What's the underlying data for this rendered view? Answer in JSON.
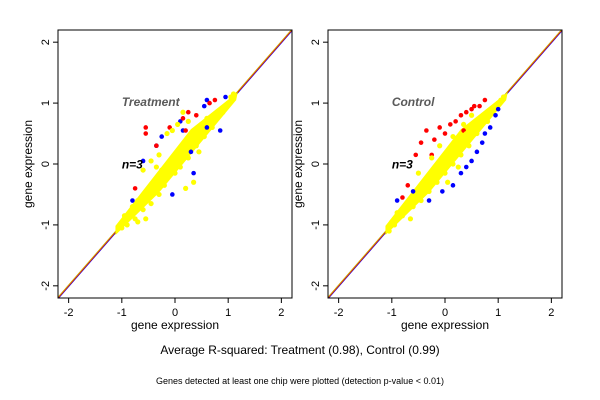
{
  "colors": {
    "background": "#ffffff",
    "frame": "#000000",
    "blue": "#0000ff",
    "red": "#ff0000",
    "yellow": "#ffff00",
    "diag_red": "#ff0000",
    "diag_orange": "#c8a000",
    "diag_blue": "#0000ff",
    "panel_title": "#5a5a5a",
    "n_label": "#000000"
  },
  "chart_data": [
    {
      "type": "scatter",
      "title": "Treatment",
      "annotation": "n=3",
      "xlabel": "gene expression",
      "ylabel": "gene expression",
      "xlim": [
        -2.2,
        2.2
      ],
      "ylim": [
        -2.2,
        2.2
      ],
      "xticks": [
        -2,
        -1,
        0,
        1,
        2
      ],
      "yticks": [
        -2,
        -1,
        0,
        1,
        2
      ],
      "grid": false,
      "reference_lines": [
        {
          "color": "diag_blue",
          "slope": 1,
          "intercept": 0
        },
        {
          "color": "diag_red",
          "slope": 1,
          "intercept": 0
        },
        {
          "color": "diag_orange",
          "slope": 1,
          "intercept": 0
        }
      ],
      "series": [
        {
          "color": "blue",
          "points": [
            [
              -0.6,
              0.05
            ],
            [
              -0.35,
              0.3
            ],
            [
              0.1,
              0.7
            ],
            [
              0.6,
              1.05
            ],
            [
              0.85,
              0.55
            ],
            [
              0.6,
              0.6
            ],
            [
              -0.05,
              -0.5
            ],
            [
              0.35,
              -0.15
            ],
            [
              -0.25,
              0.45
            ],
            [
              0.55,
              0.95
            ],
            [
              0.95,
              1.1
            ],
            [
              -0.8,
              -0.6
            ],
            [
              0.3,
              0.2
            ],
            [
              0.15,
              0.55
            ]
          ]
        },
        {
          "color": "red",
          "points": [
            [
              -0.55,
              0.5
            ],
            [
              -0.55,
              0.6
            ],
            [
              -0.1,
              0.6
            ],
            [
              0.15,
              0.75
            ],
            [
              0.25,
              0.85
            ],
            [
              0.4,
              0.8
            ],
            [
              -0.35,
              0.3
            ],
            [
              0.05,
              0.65
            ],
            [
              0.65,
              1.0
            ],
            [
              0.75,
              1.05
            ],
            [
              -0.75,
              -0.4
            ],
            [
              0.2,
              0.55
            ]
          ]
        },
        {
          "color": "yellow",
          "points": [
            [
              -1.0,
              -1.05
            ],
            [
              -0.95,
              -0.85
            ],
            [
              -0.9,
              -1.0
            ],
            [
              -0.8,
              -0.7
            ],
            [
              -0.75,
              -0.9
            ],
            [
              -0.7,
              -0.6
            ],
            [
              -0.6,
              -0.75
            ],
            [
              -0.5,
              -0.45
            ],
            [
              -0.45,
              -0.65
            ],
            [
              -0.4,
              -0.3
            ],
            [
              -0.3,
              -0.5
            ],
            [
              -0.25,
              -0.1
            ],
            [
              -0.2,
              -0.35
            ],
            [
              -0.1,
              0.0
            ],
            [
              0.0,
              -0.15
            ],
            [
              0.05,
              0.15
            ],
            [
              0.1,
              -0.05
            ],
            [
              0.2,
              0.3
            ],
            [
              0.25,
              0.1
            ],
            [
              0.3,
              0.45
            ],
            [
              0.4,
              0.3
            ],
            [
              0.5,
              0.65
            ],
            [
              0.55,
              0.45
            ],
            [
              0.6,
              0.75
            ],
            [
              0.7,
              0.6
            ],
            [
              0.8,
              0.85
            ],
            [
              0.9,
              0.85
            ],
            [
              1.0,
              1.0
            ],
            [
              1.05,
              1.1
            ],
            [
              1.1,
              1.15
            ],
            [
              -0.15,
              0.5
            ],
            [
              -0.05,
              0.55
            ],
            [
              0.05,
              0.65
            ],
            [
              -0.6,
              -0.1
            ],
            [
              -0.45,
              0.05
            ],
            [
              -0.35,
              -0.05
            ],
            [
              0.2,
              -0.4
            ],
            [
              0.35,
              -0.3
            ],
            [
              -0.7,
              -0.95
            ],
            [
              -0.55,
              -0.9
            ],
            [
              0.25,
              0.7
            ],
            [
              0.15,
              0.85
            ],
            [
              -0.3,
              0.15
            ],
            [
              0.45,
              0.2
            ]
          ]
        }
      ]
    },
    {
      "type": "scatter",
      "title": "Control",
      "annotation": "n=3",
      "xlabel": "gene expression",
      "ylabel": "gene expression",
      "xlim": [
        -2.2,
        2.2
      ],
      "ylim": [
        -2.2,
        2.2
      ],
      "xticks": [
        -2,
        -1,
        0,
        1,
        2
      ],
      "yticks": [
        -2,
        -1,
        0,
        1,
        2
      ],
      "grid": false,
      "reference_lines": [
        {
          "color": "diag_blue",
          "slope": 1,
          "intercept": 0
        },
        {
          "color": "diag_red",
          "slope": 1,
          "intercept": 0
        },
        {
          "color": "diag_orange",
          "slope": 1,
          "intercept": 0
        }
      ],
      "series": [
        {
          "color": "blue",
          "points": [
            [
              -0.9,
              -0.6
            ],
            [
              -0.6,
              -0.45
            ],
            [
              0.15,
              -0.35
            ],
            [
              0.3,
              -0.15
            ],
            [
              0.4,
              -0.05
            ],
            [
              0.6,
              0.2
            ],
            [
              0.7,
              0.35
            ],
            [
              0.75,
              0.5
            ],
            [
              0.85,
              0.6
            ],
            [
              0.95,
              0.8
            ],
            [
              1.0,
              0.9
            ],
            [
              -0.05,
              -0.45
            ],
            [
              -0.3,
              -0.6
            ],
            [
              0.5,
              0.05
            ]
          ]
        },
        {
          "color": "red",
          "points": [
            [
              -0.35,
              0.55
            ],
            [
              -0.2,
              0.4
            ],
            [
              -0.1,
              0.6
            ],
            [
              0.0,
              0.5
            ],
            [
              0.1,
              0.65
            ],
            [
              0.2,
              0.7
            ],
            [
              0.3,
              0.8
            ],
            [
              0.4,
              0.85
            ],
            [
              0.5,
              0.9
            ],
            [
              0.55,
              0.95
            ],
            [
              0.65,
              0.95
            ],
            [
              0.75,
              1.05
            ],
            [
              -0.55,
              0.15
            ],
            [
              -0.45,
              0.35
            ],
            [
              -0.7,
              -0.35
            ],
            [
              -0.8,
              -0.55
            ],
            [
              0.35,
              0.55
            ],
            [
              -0.25,
              0.15
            ]
          ]
        },
        {
          "color": "yellow",
          "points": [
            [
              -1.05,
              -1.1
            ],
            [
              -1.0,
              -0.95
            ],
            [
              -0.95,
              -1.0
            ],
            [
              -0.9,
              -0.8
            ],
            [
              -0.8,
              -0.85
            ],
            [
              -0.7,
              -0.65
            ],
            [
              -0.6,
              -0.7
            ],
            [
              -0.5,
              -0.4
            ],
            [
              -0.45,
              -0.6
            ],
            [
              -0.35,
              -0.25
            ],
            [
              -0.3,
              -0.45
            ],
            [
              -0.2,
              -0.1
            ],
            [
              -0.15,
              -0.3
            ],
            [
              -0.05,
              0.05
            ],
            [
              0.0,
              -0.15
            ],
            [
              0.1,
              0.2
            ],
            [
              0.15,
              0.0
            ],
            [
              0.25,
              0.35
            ],
            [
              0.3,
              0.15
            ],
            [
              0.4,
              0.5
            ],
            [
              0.45,
              0.3
            ],
            [
              0.55,
              0.65
            ],
            [
              0.6,
              0.5
            ],
            [
              0.7,
              0.75
            ],
            [
              0.8,
              0.7
            ],
            [
              0.9,
              0.9
            ],
            [
              1.0,
              1.0
            ],
            [
              1.05,
              1.05
            ],
            [
              1.1,
              1.1
            ],
            [
              -0.5,
              -0.15
            ],
            [
              -0.25,
              0.1
            ],
            [
              0.15,
              0.45
            ],
            [
              0.35,
              0.65
            ],
            [
              0.05,
              -0.3
            ],
            [
              0.25,
              -0.05
            ],
            [
              -0.65,
              -0.9
            ],
            [
              0.5,
              0.8
            ],
            [
              -0.1,
              0.3
            ]
          ]
        }
      ]
    }
  ],
  "captions": {
    "average": "Average R-squared: Treatment (0.98), Control (0.99)",
    "detection": "Genes detected at least one chip were plotted (detection p-value < 0.01)"
  }
}
